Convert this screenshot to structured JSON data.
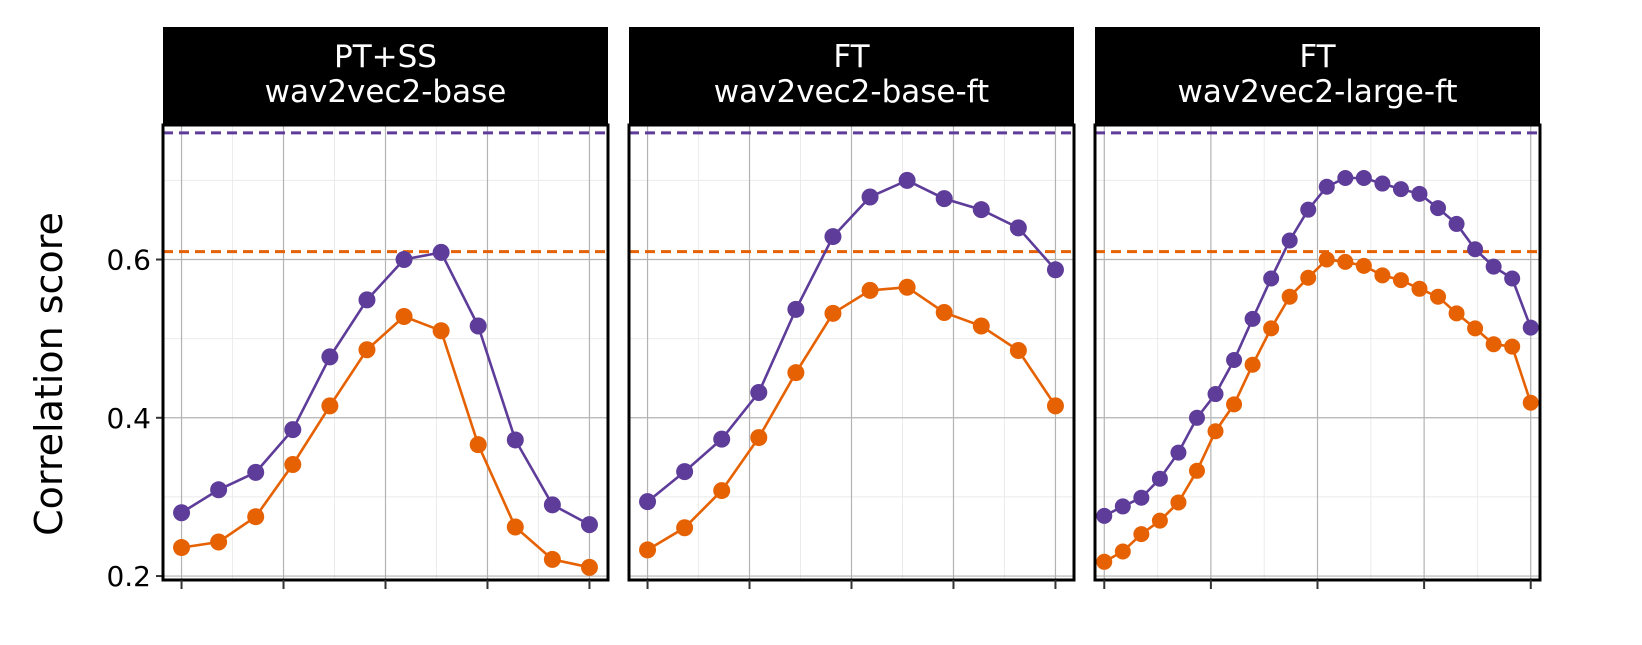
{
  "colors": {
    "series_a": "#5e3c99",
    "series_b": "#e66101",
    "strip_bg": "#000000",
    "strip_text": "#ffffff",
    "grid_major": "#b3b3b3",
    "grid_minor": "#ebebeb"
  },
  "y_axis": {
    "label": "Correlation score",
    "ticks": [
      0.2,
      0.4,
      0.6
    ],
    "tick_labels": [
      "0.2",
      "0.4",
      "0.6"
    ],
    "minor_ticks": [
      0.3,
      0.5,
      0.7
    ]
  },
  "chart_data": {
    "type": "line",
    "facets": [
      {
        "strip_line1": "PT+SS",
        "strip_line2": "wav2vec2-base",
        "x": [
          1,
          2,
          3,
          4,
          5,
          6,
          7,
          8,
          9,
          10,
          11,
          12
        ],
        "xlim": [
          0.5,
          12.5
        ],
        "x_ticks": [
          1,
          3.75,
          6.5,
          9.25,
          12
        ],
        "ylim": [
          0.195,
          0.77
        ],
        "hline_a": 0.76,
        "hline_b": 0.61,
        "series": [
          {
            "values": [
              0.28,
              0.309,
              0.331,
              0.385,
              0.477,
              0.549,
              0.6,
              0.609,
              0.516,
              0.372,
              0.29,
              0.265
            ]
          },
          {
            "values": [
              0.236,
              0.243,
              0.275,
              0.341,
              0.415,
              0.486,
              0.528,
              0.51,
              0.366,
              0.262,
              0.221,
              0.211
            ]
          }
        ]
      },
      {
        "strip_line1": "FT",
        "strip_line2": "wav2vec2-base-ft",
        "x": [
          1,
          2,
          3,
          4,
          5,
          6,
          7,
          8,
          9,
          10,
          11,
          12
        ],
        "xlim": [
          0.5,
          12.5
        ],
        "x_ticks": [
          1,
          3.75,
          6.5,
          9.25,
          12
        ],
        "ylim": [
          0.195,
          0.77
        ],
        "hline_a": 0.76,
        "hline_b": 0.61,
        "series": [
          {
            "values": [
              0.294,
              0.332,
              0.373,
              0.432,
              0.537,
              0.629,
              0.679,
              0.7,
              0.677,
              0.663,
              0.64,
              0.587
            ]
          },
          {
            "values": [
              0.233,
              0.261,
              0.308,
              0.375,
              0.457,
              0.532,
              0.561,
              0.565,
              0.533,
              0.516,
              0.485,
              0.415
            ]
          }
        ]
      },
      {
        "strip_line1": "FT",
        "strip_line2": "wav2vec2-large-ft",
        "x": [
          1,
          2,
          3,
          4,
          5,
          6,
          7,
          8,
          9,
          10,
          11,
          12,
          13,
          14,
          15,
          16,
          17,
          18,
          19,
          20,
          21,
          22,
          23,
          24
        ],
        "xlim": [
          0.5,
          24.5
        ],
        "x_ticks": [
          1,
          6.75,
          12.5,
          18.25,
          24
        ],
        "ylim": [
          0.195,
          0.77
        ],
        "hline_a": 0.76,
        "hline_b": 0.61,
        "series": [
          {
            "values": [
              0.276,
              0.288,
              0.299,
              0.323,
              0.356,
              0.4,
              0.43,
              0.473,
              0.525,
              0.576,
              0.624,
              0.663,
              0.692,
              0.703,
              0.703,
              0.696,
              0.689,
              0.683,
              0.665,
              0.645,
              0.613,
              0.591,
              0.576,
              0.514
            ]
          },
          {
            "values": [
              0.218,
              0.231,
              0.253,
              0.27,
              0.293,
              0.333,
              0.383,
              0.417,
              0.467,
              0.513,
              0.553,
              0.577,
              0.6,
              0.597,
              0.592,
              0.58,
              0.574,
              0.563,
              0.553,
              0.532,
              0.513,
              0.493,
              0.49,
              0.419
            ]
          }
        ]
      }
    ]
  }
}
